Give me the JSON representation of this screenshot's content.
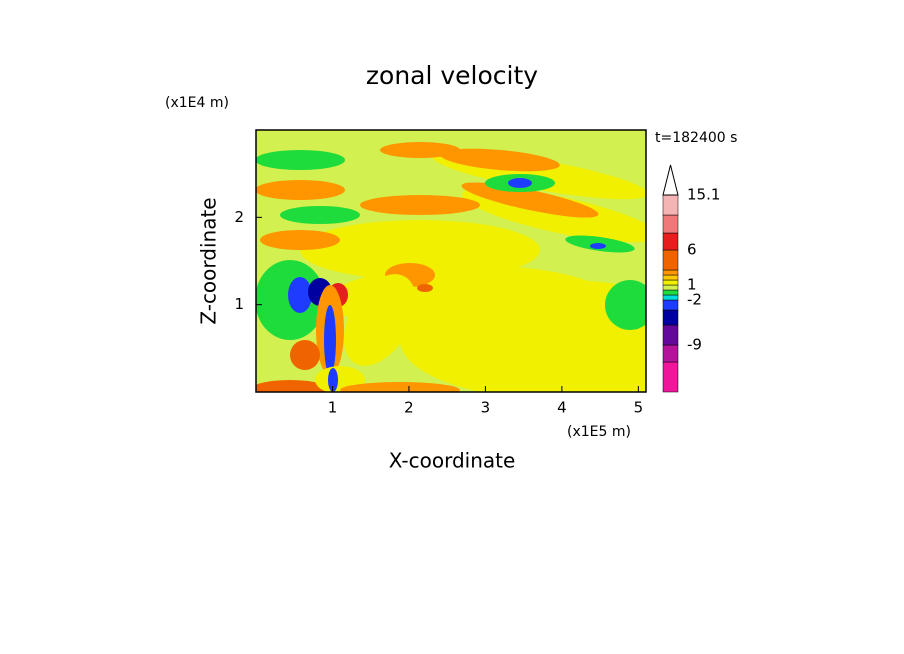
{
  "chart_data": {
    "type": "contour",
    "title": "zonal velocity",
    "x_label": "X-coordinate",
    "y_label": "Z-coordinate",
    "x_unit": "(x1E5 m)",
    "y_unit": "(x1E4 m)",
    "annotation": "t=182400 s",
    "xlim": [
      0,
      5.1
    ],
    "ylim": [
      0,
      3
    ],
    "xticks": [
      1,
      2,
      3,
      4,
      5
    ],
    "yticks": [
      1,
      2
    ],
    "colorbar": {
      "colors": [
        "#f0169b",
        "#b4149b",
        "#64089b",
        "#0000a0",
        "#1e3cff",
        "#00dcdc",
        "#1edc3c",
        "#d2f050",
        "#f0f000",
        "#ffc800",
        "#ff9600",
        "#f06400",
        "#e61e1e",
        "#f07878",
        "#f5b4b4"
      ],
      "levels": [
        null,
        null,
        -9,
        null,
        null,
        -2,
        null,
        null,
        1,
        null,
        null,
        null,
        6,
        null,
        null,
        15.1
      ]
    }
  }
}
